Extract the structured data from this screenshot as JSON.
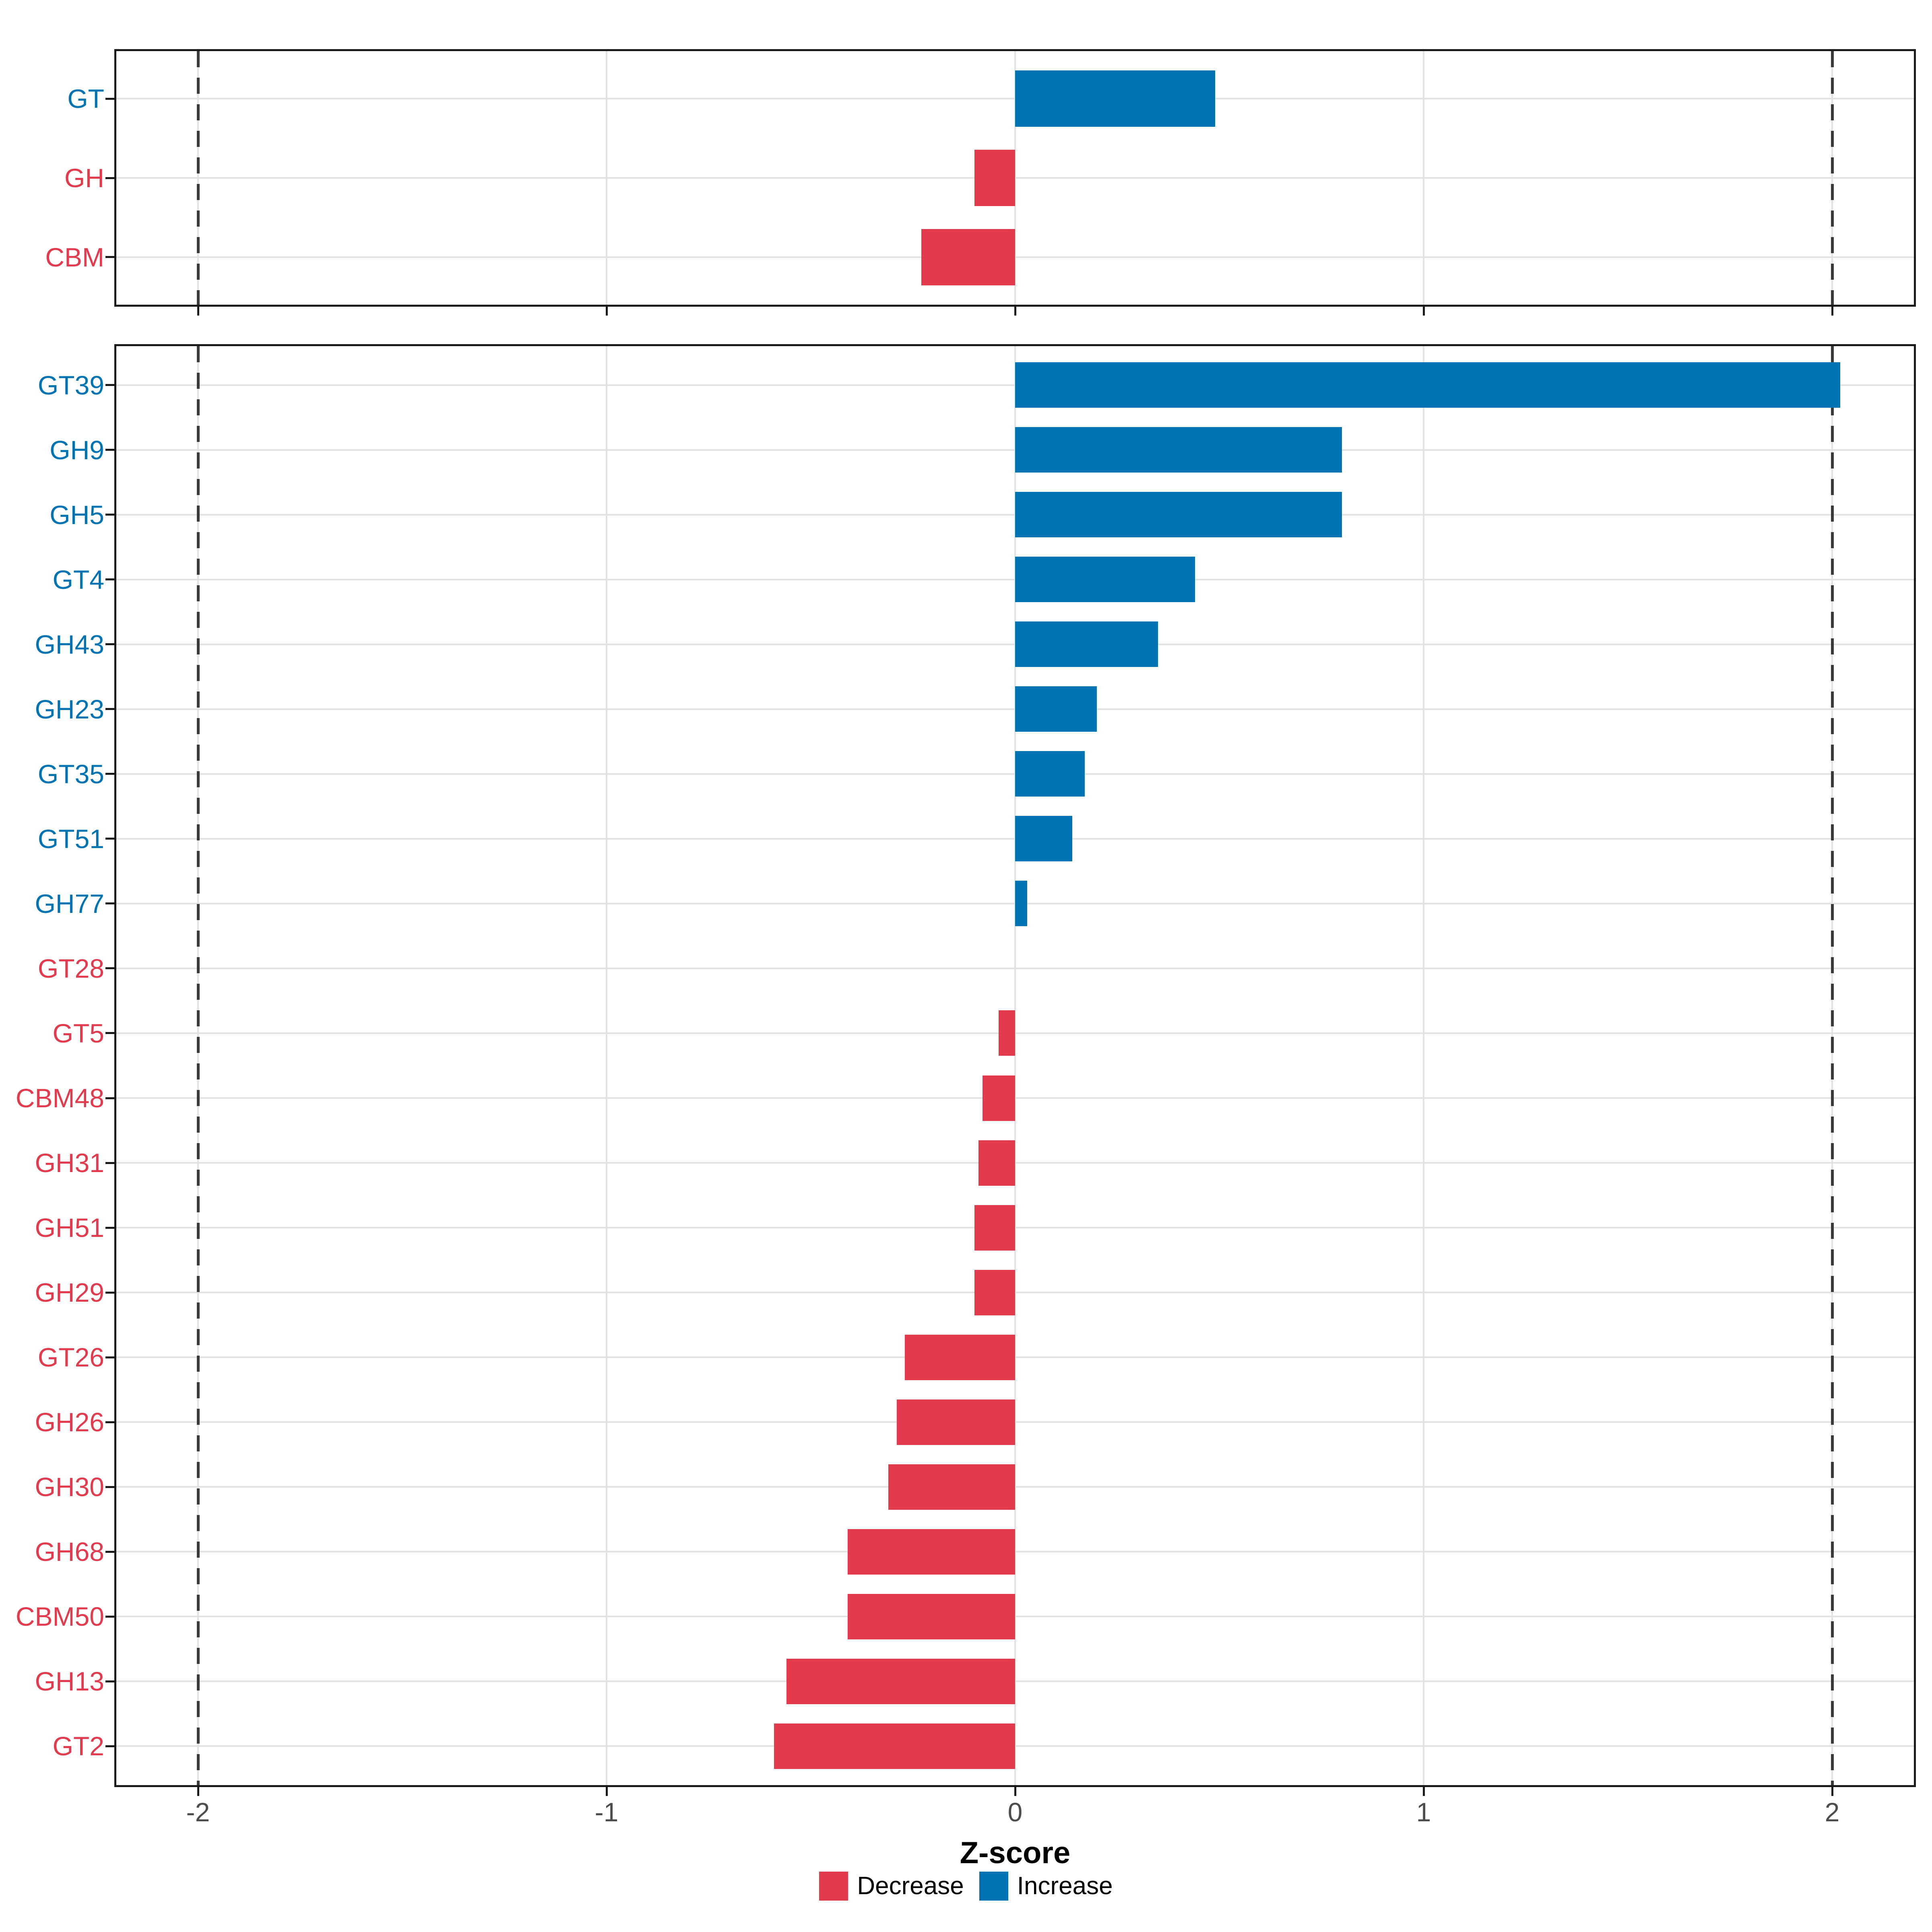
{
  "figure_title": "",
  "colors": {
    "increase": "#0073B2",
    "decrease": "#E23B4E",
    "grid": "#E2E2E2",
    "panel_border": "#1A1A1A",
    "dashed_reference": "#3A3A3A",
    "axis_tick_text": "#4D4D4D"
  },
  "axis": {
    "xlabel": "Z-score",
    "xticks": [
      "-2",
      "-1",
      "0",
      "1",
      "2"
    ],
    "xtick_values": [
      -2,
      -1,
      0,
      1,
      2
    ],
    "xlim": [
      -2.2,
      2.2
    ],
    "reference_lines": [
      -2,
      2
    ]
  },
  "legend": {
    "items": [
      {
        "label": "Decrease",
        "color": "#E23B4E"
      },
      {
        "label": "Increase",
        "color": "#0073B2"
      }
    ]
  },
  "chart_data": [
    {
      "type": "bar",
      "orientation": "horizontal",
      "panel": "cazyme-class",
      "title": "",
      "xlabel": "",
      "ylabel": "",
      "xlim": [
        -2.2,
        2.2
      ],
      "grid": true,
      "categories": [
        "GT",
        "GH",
        "CBM"
      ],
      "values": [
        0.49,
        -0.1,
        -0.23
      ],
      "directions": [
        "Increase",
        "Decrease",
        "Decrease"
      ]
    },
    {
      "type": "bar",
      "orientation": "horizontal",
      "panel": "cazyme-family",
      "title": "",
      "xlabel": "Z-score",
      "ylabel": "",
      "xlim": [
        -2.2,
        2.2
      ],
      "grid": true,
      "categories": [
        "GT39",
        "GH9",
        "GH5",
        "GT4",
        "GH43",
        "GH23",
        "GT35",
        "GT51",
        "GH77",
        "GT28",
        "GT5",
        "CBM48",
        "GH31",
        "GH51",
        "GH29",
        "GT26",
        "GH26",
        "GH30",
        "GH68",
        "CBM50",
        "GH13",
        "GT2"
      ],
      "values": [
        2.02,
        0.8,
        0.8,
        0.44,
        0.35,
        0.2,
        0.17,
        0.14,
        0.03,
        0.0,
        -0.04,
        -0.08,
        -0.09,
        -0.1,
        -0.1,
        -0.27,
        -0.29,
        -0.31,
        -0.41,
        -0.41,
        -0.56,
        -0.59
      ],
      "directions": [
        "Increase",
        "Increase",
        "Increase",
        "Increase",
        "Increase",
        "Increase",
        "Increase",
        "Increase",
        "Increase",
        "Decrease",
        "Decrease",
        "Decrease",
        "Decrease",
        "Decrease",
        "Decrease",
        "Decrease",
        "Decrease",
        "Decrease",
        "Decrease",
        "Decrease",
        "Decrease",
        "Decrease"
      ]
    }
  ]
}
